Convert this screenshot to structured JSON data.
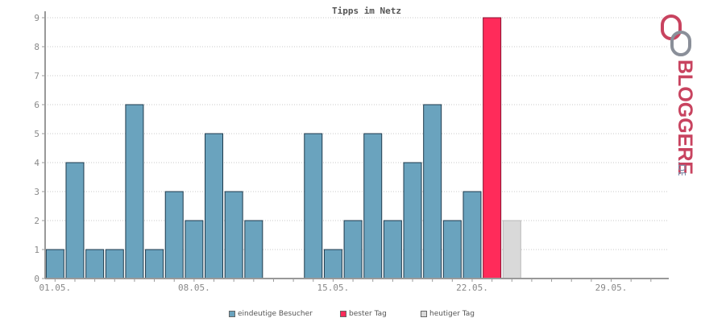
{
  "chart_data": {
    "type": "bar",
    "title": "Tipps im Netz",
    "x": [
      1,
      2,
      3,
      4,
      5,
      6,
      7,
      8,
      9,
      10,
      11,
      12,
      13,
      14,
      15,
      16,
      17,
      18,
      19,
      20,
      21,
      22,
      23
    ],
    "values": [
      1,
      4,
      1,
      1,
      6,
      1,
      3,
      2,
      5,
      3,
      2,
      0,
      0,
      5,
      1,
      2,
      5,
      2,
      4,
      6,
      2,
      3,
      9
    ],
    "today": {
      "x": 24,
      "value": 2
    },
    "best_day_x": 23,
    "x_tick_labels": [
      "01.05.",
      "08.05.",
      "15.05.",
      "22.05.",
      "29.05."
    ],
    "x_tick_days": [
      1,
      8,
      15,
      22,
      29
    ],
    "x_range": [
      1,
      31
    ],
    "ylim": [
      0,
      9
    ],
    "y_ticks": [
      0,
      1,
      2,
      3,
      4,
      5,
      6,
      7,
      8,
      9
    ],
    "grid": true,
    "legend_position": "bottom-center",
    "legend": [
      {
        "key": "visitors",
        "label": "eindeutige Besucher",
        "color": "#6aa3be"
      },
      {
        "key": "best",
        "label": "bester Tag",
        "color": "#ff2b5a"
      },
      {
        "key": "today",
        "label": "heutiger Tag",
        "color": "#d9d9d9"
      }
    ]
  },
  "logo": {
    "text": "BLOGGEREI",
    "suffix": ".DE"
  }
}
